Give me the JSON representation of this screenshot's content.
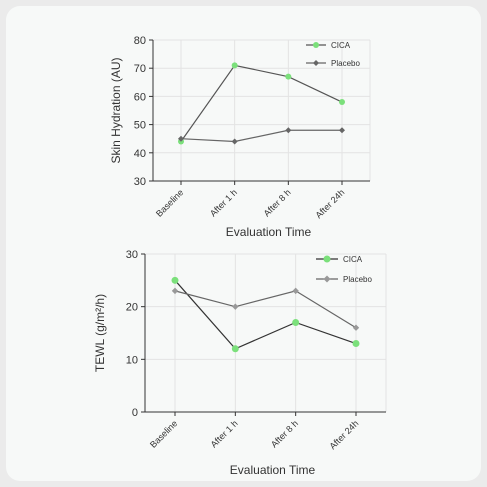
{
  "chart_data": [
    {
      "type": "line",
      "categories": [
        "Baseline",
        "After 1 h",
        "After 8 h",
        "After 24h"
      ],
      "series": [
        {
          "name": "CICA",
          "values": [
            44,
            71,
            67,
            58
          ],
          "color": "#7be07b",
          "line_color": "#555555",
          "marker": "circle"
        },
        {
          "name": "Placebo",
          "values": [
            45,
            44,
            48,
            48
          ],
          "color": "#666666",
          "line_color": "#666666",
          "marker": "diamond"
        }
      ],
      "xlabel": "Evaluation Time",
      "ylabel": "Skin Hydration (AU)",
      "ylim": [
        30,
        80
      ],
      "yticks": [
        30,
        40,
        50,
        60,
        70,
        80
      ],
      "grid": true,
      "legend": "top-right"
    },
    {
      "type": "line",
      "categories": [
        "Baseline",
        "After 1 h",
        "After 8 h",
        "After 24h"
      ],
      "series": [
        {
          "name": "CICA",
          "values": [
            25,
            12,
            17,
            13
          ],
          "color": "#7be07b",
          "line_color": "#333333",
          "marker": "circle"
        },
        {
          "name": "Placebo",
          "values": [
            23,
            20,
            23,
            16
          ],
          "color": "#999999",
          "line_color": "#666666",
          "marker": "diamond"
        }
      ],
      "xlabel": "Evaluation Time",
      "ylabel": "TEWL (g/m²/h)",
      "ylim": [
        0,
        30
      ],
      "yticks": [
        0,
        10,
        20,
        30
      ],
      "grid": true,
      "legend": "top-right"
    }
  ]
}
